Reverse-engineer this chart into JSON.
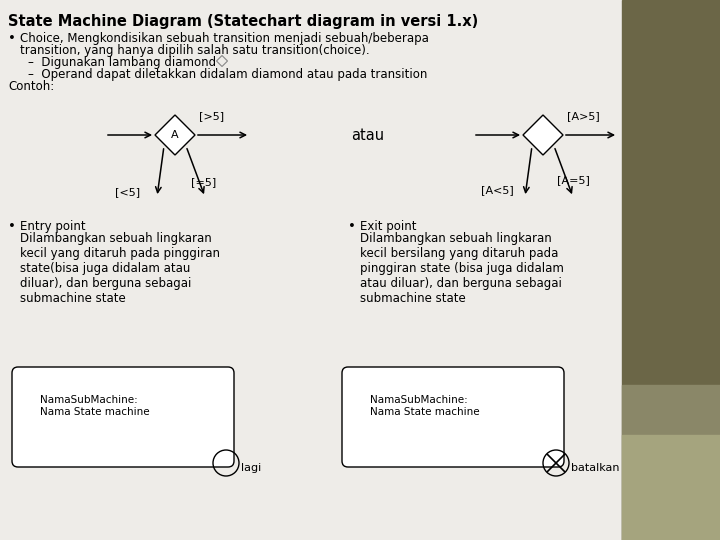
{
  "title": "State Machine Diagram (Statechart diagram in versi 1.x)",
  "title_fontsize": 10.5,
  "body_fontsize": 8.5,
  "small_fontsize": 8,
  "bg_color": "#eeece8",
  "sidebar_color": "#6b6647",
  "sidebar2_color": "#8a8768",
  "sidebar3_color": "#a5a47e",
  "text_color": "#000000",
  "bullet1_line1": "Choice, Mengkondisikan sebuah transition menjadi sebuah/beberapa",
  "bullet1_line2": "transition, yang hanya dipilih salah satu transition(choice).",
  "bullet1_sub1": "–  Digunakan lambang diamond",
  "bullet1_sub2": "–  Operand dapat diletakkan didalam diamond atau pada transition",
  "contoh_label": "Contoh:",
  "atau_label": "atau",
  "label_gt5": "[>5]",
  "label_eq5": "[=5]",
  "label_lt5": "[<5]",
  "label_A": "A",
  "label_Agt5": "[A>5]",
  "label_Aeq5": "[A=5]",
  "label_Alt5": "[A<5]",
  "bullet2_line1": "Entry point",
  "bullet2_rest": "Dilambangkan sebuah lingkaran\nkecil yang ditaruh pada pinggiran\nstate(bisa juga didalam atau\ndiluar), dan berguna sebagai\nsubmachine state",
  "bullet3_line1": "Exit point",
  "bullet3_rest": "Dilambangkan sebuah lingkaran\nkecil bersilang yang ditaruh pada\npinggiran state (bisa juga didalam\natau diluar), dan berguna sebagai\nsubmachine state",
  "box1_text": "NamaSubMachine:\nNama State machine",
  "box2_text": "NamaSubMachine:\nNama State machine",
  "lagi_label": "lagi",
  "batalkan_label": "batalkan"
}
